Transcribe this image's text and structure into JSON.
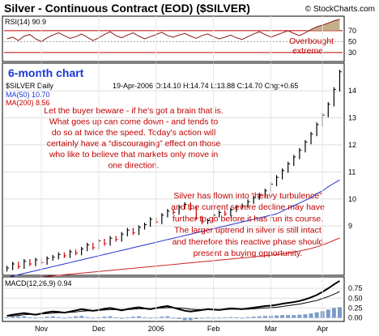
{
  "chart_data": {
    "type": "candlestick",
    "title": "Silver - Continuous Contract (EOD) ($SILVER)",
    "copyright": "© StockCharts.com",
    "period_label": "6-month chart",
    "symbol_label": "$SILVER Daily",
    "quote_line": "19-Apr-2006 O:14.10 H:14.74 L:13.88 C:14.70 Chg:+0.65",
    "ma50_label": "MA(50) 10.70",
    "ma200_label": "MA(200) 8.56",
    "x_tick_labels": [
      "Nov",
      "Dec",
      "2006",
      "Feb",
      "Mar",
      "Apr"
    ],
    "price_ticks": [
      9,
      10,
      11,
      12,
      13,
      14
    ],
    "price_ylim": [
      7.3,
      14.9
    ],
    "rsi": {
      "label": "RSI(14) 90.9",
      "ticks": [
        70,
        50,
        30
      ],
      "ylim": [
        15,
        95
      ],
      "annotation": [
        "Overbought",
        "extreme"
      ],
      "values": [
        55,
        58,
        52,
        60,
        63,
        55,
        50,
        57,
        62,
        66,
        61,
        56,
        59,
        64,
        58,
        52,
        57,
        63,
        68,
        61,
        57,
        62,
        66,
        60,
        55,
        59,
        63,
        67,
        61,
        58,
        62,
        65,
        60,
        56,
        61,
        64,
        59,
        55,
        58,
        62,
        57,
        54,
        59,
        64,
        68,
        63,
        58,
        62,
        66,
        70,
        65,
        61,
        66,
        72,
        77,
        80,
        84,
        88,
        90.9
      ]
    },
    "price_series_close": [
      7.45,
      7.6,
      7.5,
      7.7,
      7.6,
      7.75,
      7.65,
      7.8,
      7.85,
      7.95,
      7.9,
      8.05,
      8.0,
      8.15,
      8.3,
      8.2,
      8.45,
      8.35,
      8.55,
      8.5,
      8.7,
      8.85,
      8.75,
      8.95,
      9.05,
      9.25,
      9.15,
      9.4,
      9.55,
      9.5,
      9.7,
      9.8,
      9.65,
      9.3,
      9.15,
      9.2,
      9.4,
      9.5,
      9.45,
      9.6,
      9.7,
      9.75,
      9.9,
      10.05,
      10.15,
      10.3,
      10.55,
      10.8,
      11.05,
      11.3,
      11.55,
      11.8,
      12.1,
      12.4,
      12.75,
      13.1,
      13.5,
      14.05,
      14.7
    ],
    "ma50_values": [
      7.1,
      7.15,
      7.2,
      7.25,
      7.3,
      7.35,
      7.4,
      7.45,
      7.5,
      7.55,
      7.6,
      7.65,
      7.7,
      7.75,
      7.8,
      7.85,
      7.9,
      7.95,
      8.0,
      8.05,
      8.1,
      8.15,
      8.2,
      8.25,
      8.3,
      8.35,
      8.4,
      8.45,
      8.5,
      8.55,
      8.6,
      8.65,
      8.7,
      8.75,
      8.8,
      8.85,
      8.9,
      8.95,
      9.0,
      9.05,
      9.1,
      9.15,
      9.2,
      9.25,
      9.3,
      9.35,
      9.4,
      9.45,
      9.55,
      9.65,
      9.75,
      9.85,
      9.95,
      10.05,
      10.2,
      10.3,
      10.45,
      10.58,
      10.7
    ],
    "ma200_values": [
      7.0,
      7.02,
      7.04,
      7.06,
      7.08,
      7.1,
      7.12,
      7.14,
      7.16,
      7.18,
      7.2,
      7.22,
      7.24,
      7.26,
      7.28,
      7.3,
      7.32,
      7.34,
      7.36,
      7.38,
      7.4,
      7.42,
      7.44,
      7.46,
      7.48,
      7.5,
      7.52,
      7.54,
      7.56,
      7.58,
      7.6,
      7.62,
      7.64,
      7.66,
      7.68,
      7.7,
      7.72,
      7.74,
      7.76,
      7.78,
      7.8,
      7.82,
      7.84,
      7.86,
      7.88,
      7.9,
      7.92,
      7.94,
      7.97,
      8.0,
      8.04,
      8.08,
      8.12,
      8.17,
      8.23,
      8.3,
      8.38,
      8.47,
      8.56
    ],
    "macd": {
      "label": "MACD(12,26,9) 0.94",
      "ticks": [
        0.75,
        0.5,
        0.25,
        0.0
      ],
      "ylim": [
        -0.05,
        1.0
      ],
      "macd_values": [
        0.05,
        0.08,
        0.1,
        0.12,
        0.1,
        0.08,
        0.11,
        0.14,
        0.16,
        0.15,
        0.13,
        0.16,
        0.19,
        0.22,
        0.2,
        0.18,
        0.2,
        0.23,
        0.25,
        0.22,
        0.19,
        0.22,
        0.25,
        0.27,
        0.24,
        0.22,
        0.25,
        0.28,
        0.3,
        0.26,
        0.22,
        0.18,
        0.16,
        0.18,
        0.2,
        0.22,
        0.21,
        0.2,
        0.22,
        0.24,
        0.23,
        0.22,
        0.24,
        0.26,
        0.28,
        0.3,
        0.31,
        0.33,
        0.36,
        0.38,
        0.4,
        0.43,
        0.47,
        0.52,
        0.58,
        0.66,
        0.75,
        0.85,
        0.94
      ],
      "signal_values": [
        0.04,
        0.05,
        0.06,
        0.08,
        0.09,
        0.09,
        0.1,
        0.11,
        0.12,
        0.13,
        0.13,
        0.14,
        0.15,
        0.17,
        0.18,
        0.18,
        0.19,
        0.2,
        0.21,
        0.21,
        0.21,
        0.21,
        0.22,
        0.23,
        0.23,
        0.23,
        0.24,
        0.25,
        0.26,
        0.26,
        0.25,
        0.24,
        0.22,
        0.21,
        0.21,
        0.21,
        0.21,
        0.21,
        0.21,
        0.22,
        0.22,
        0.22,
        0.22,
        0.23,
        0.24,
        0.25,
        0.26,
        0.27,
        0.29,
        0.31,
        0.33,
        0.35,
        0.38,
        0.41,
        0.44,
        0.49,
        0.54,
        0.6,
        0.67
      ],
      "histogram_values": [
        0.01,
        0.03,
        0.04,
        0.04,
        0.01,
        -0.01,
        0.01,
        0.03,
        0.04,
        0.02,
        0.0,
        0.02,
        0.04,
        0.05,
        0.02,
        0.0,
        0.01,
        0.03,
        0.04,
        0.01,
        -0.02,
        0.01,
        0.03,
        0.04,
        0.01,
        -0.01,
        0.01,
        0.03,
        0.04,
        0.0,
        -0.03,
        -0.06,
        -0.06,
        -0.03,
        -0.01,
        0.01,
        0.0,
        -0.01,
        0.01,
        0.02,
        0.01,
        0.0,
        0.02,
        0.03,
        0.04,
        0.05,
        0.05,
        0.06,
        0.07,
        0.07,
        0.07,
        0.08,
        0.09,
        0.11,
        0.14,
        0.17,
        0.21,
        0.25,
        0.27
      ]
    },
    "annotations": [
      [
        "Let the buyer beware - if he's got a brain that is.",
        "What goes up can come down - and tends to",
        "do so at twice the speed. Today's action will",
        "certainly have a “discouraging” effect on those",
        "who like to believe that markets only move in",
        "one direction."
      ],
      [
        "Silver has flown into “heavy turbulence”",
        "and the current severe decline may have",
        "further to go before it has run its course.",
        "The larger uptrend in silver is still intact",
        "and therefore this reactive phase should",
        "present a buying opportunity."
      ]
    ]
  }
}
